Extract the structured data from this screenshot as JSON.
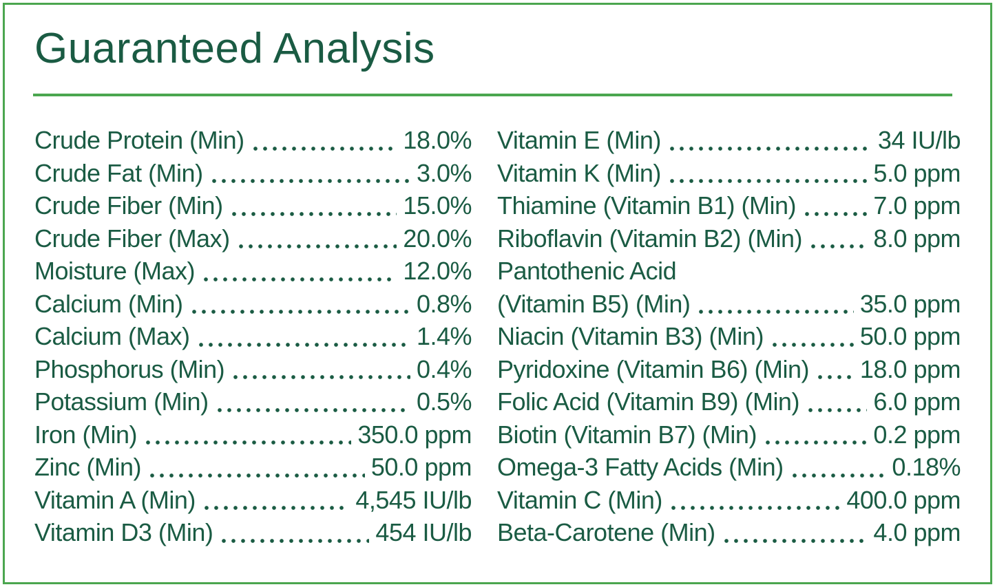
{
  "title": "Guaranteed Analysis",
  "colors": {
    "accent_green": "#4BA64F",
    "text_green": "#1A5B43",
    "background": "#FFFFFF"
  },
  "analysis": {
    "left": [
      {
        "label": "Crude Protein (Min)",
        "value": "18.0%"
      },
      {
        "label": "Crude Fat (Min)",
        "value": "3.0%"
      },
      {
        "label": "Crude Fiber (Min)",
        "value": "15.0%"
      },
      {
        "label": "Crude Fiber (Max)",
        "value": "20.0%"
      },
      {
        "label": "Moisture (Max)",
        "value": "12.0%"
      },
      {
        "label": "Calcium (Min)",
        "value": "0.8%"
      },
      {
        "label": "Calcium (Max)",
        "value": "1.4%"
      },
      {
        "label": "Phosphorus (Min)",
        "value": "0.4%"
      },
      {
        "label": "Potassium (Min)",
        "value": "0.5%"
      },
      {
        "label": "Iron (Min)",
        "value": "350.0 ppm"
      },
      {
        "label": "Zinc (Min)",
        "value": "50.0 ppm"
      },
      {
        "label": "Vitamin A (Min)",
        "value": "4,545 IU/lb"
      },
      {
        "label": "Vitamin D3 (Min)",
        "value": "454 IU/lb"
      }
    ],
    "right": [
      {
        "label": "Vitamin E (Min)",
        "value": "34 IU/lb"
      },
      {
        "label": "Vitamin K (Min)",
        "value": "5.0 ppm"
      },
      {
        "label": "Thiamine (Vitamin B1) (Min)",
        "value": "7.0 ppm"
      },
      {
        "label": "Riboflavin (Vitamin B2) (Min)",
        "value": "8.0 ppm"
      },
      {
        "label": "Pantothenic Acid",
        "value": ""
      },
      {
        "label": "(Vitamin B5) (Min)",
        "value": "35.0 ppm"
      },
      {
        "label": "Niacin (Vitamin B3) (Min)",
        "value": "50.0 ppm"
      },
      {
        "label": "Pyridoxine (Vitamin B6) (Min)",
        "value": "18.0 ppm"
      },
      {
        "label": "Folic Acid (Vitamin B9) (Min)",
        "value": "6.0 ppm"
      },
      {
        "label": "Biotin (Vitamin B7) (Min)",
        "value": "0.2 ppm"
      },
      {
        "label": "Omega-3 Fatty Acids (Min)",
        "value": "0.18%"
      },
      {
        "label": "Vitamin C (Min)",
        "value": "400.0 ppm"
      },
      {
        "label": "Beta-Carotene (Min)",
        "value": "4.0 ppm"
      }
    ]
  }
}
